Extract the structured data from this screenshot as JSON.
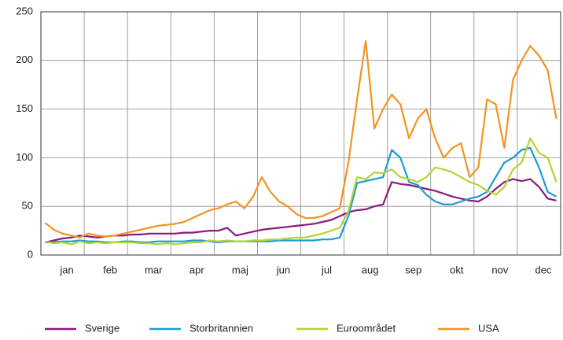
{
  "chart_data": {
    "type": "line",
    "categories": [
      null,
      null,
      "jan",
      null,
      null,
      null,
      null,
      "feb",
      null,
      null,
      null,
      null,
      "mar",
      null,
      null,
      null,
      null,
      "apr",
      null,
      null,
      null,
      null,
      "maj",
      null,
      null,
      null,
      null,
      "jun",
      null,
      null,
      null,
      null,
      "jul",
      null,
      null,
      null,
      null,
      "aug",
      null,
      null,
      null,
      null,
      "sep",
      null,
      null,
      null,
      null,
      "okt",
      null,
      null,
      null,
      null,
      "nov",
      null,
      null,
      null,
      null,
      "dec",
      null,
      null
    ],
    "ylim": [
      0,
      250
    ],
    "yticks": [
      0,
      50,
      100,
      150,
      200,
      250
    ],
    "grid": true,
    "legend": "bottom",
    "series": [
      {
        "name": "Sverige",
        "color": "#8b1a7f",
        "values": [
          13,
          15,
          17,
          18,
          20,
          19,
          18,
          19,
          20,
          20,
          21,
          21,
          22,
          22,
          22,
          22,
          23,
          23,
          24,
          25,
          25,
          28,
          20,
          22,
          24,
          26,
          27,
          28,
          29,
          30,
          31,
          32,
          34,
          36,
          40,
          44,
          46,
          47,
          50,
          52,
          75,
          73,
          72,
          70,
          68,
          66,
          63,
          60,
          58,
          56,
          55,
          60,
          68,
          75,
          78,
          76,
          78,
          70,
          58,
          56
        ]
      },
      {
        "name": "Storbritannien",
        "color": "#1e9ad6",
        "values": [
          13,
          13,
          14,
          14,
          15,
          14,
          14,
          13,
          13,
          14,
          14,
          13,
          13,
          14,
          14,
          14,
          14,
          15,
          15,
          14,
          13,
          14,
          14,
          14,
          14,
          14,
          14,
          15,
          15,
          15,
          15,
          15,
          16,
          16,
          18,
          40,
          74,
          76,
          78,
          80,
          108,
          100,
          75,
          72,
          62,
          55,
          52,
          52,
          55,
          58,
          60,
          65,
          80,
          95,
          100,
          108,
          110,
          90,
          65,
          60
        ]
      },
      {
        "name": "Euroområdet",
        "color": "#b5d334",
        "values": [
          14,
          12,
          13,
          11,
          14,
          12,
          13,
          12,
          13,
          13,
          13,
          12,
          12,
          11,
          12,
          11,
          12,
          13,
          13,
          15,
          14,
          15,
          14,
          14,
          15,
          15,
          16,
          16,
          17,
          18,
          18,
          20,
          22,
          25,
          28,
          45,
          80,
          78,
          85,
          84,
          88,
          80,
          78,
          75,
          80,
          90,
          88,
          85,
          80,
          75,
          72,
          66,
          62,
          70,
          88,
          95,
          120,
          105,
          100,
          75
        ]
      },
      {
        "name": "USA",
        "color": "#f39423",
        "values": [
          33,
          26,
          22,
          20,
          18,
          22,
          20,
          19,
          20,
          22,
          24,
          26,
          28,
          30,
          31,
          32,
          34,
          38,
          42,
          46,
          48,
          52,
          55,
          48,
          60,
          80,
          65,
          55,
          50,
          42,
          38,
          38,
          40,
          44,
          48,
          95,
          160,
          220,
          130,
          150,
          165,
          155,
          120,
          140,
          150,
          120,
          100,
          110,
          115,
          80,
          90,
          160,
          155,
          110,
          180,
          200,
          215,
          205,
          190,
          140
        ]
      }
    ]
  }
}
